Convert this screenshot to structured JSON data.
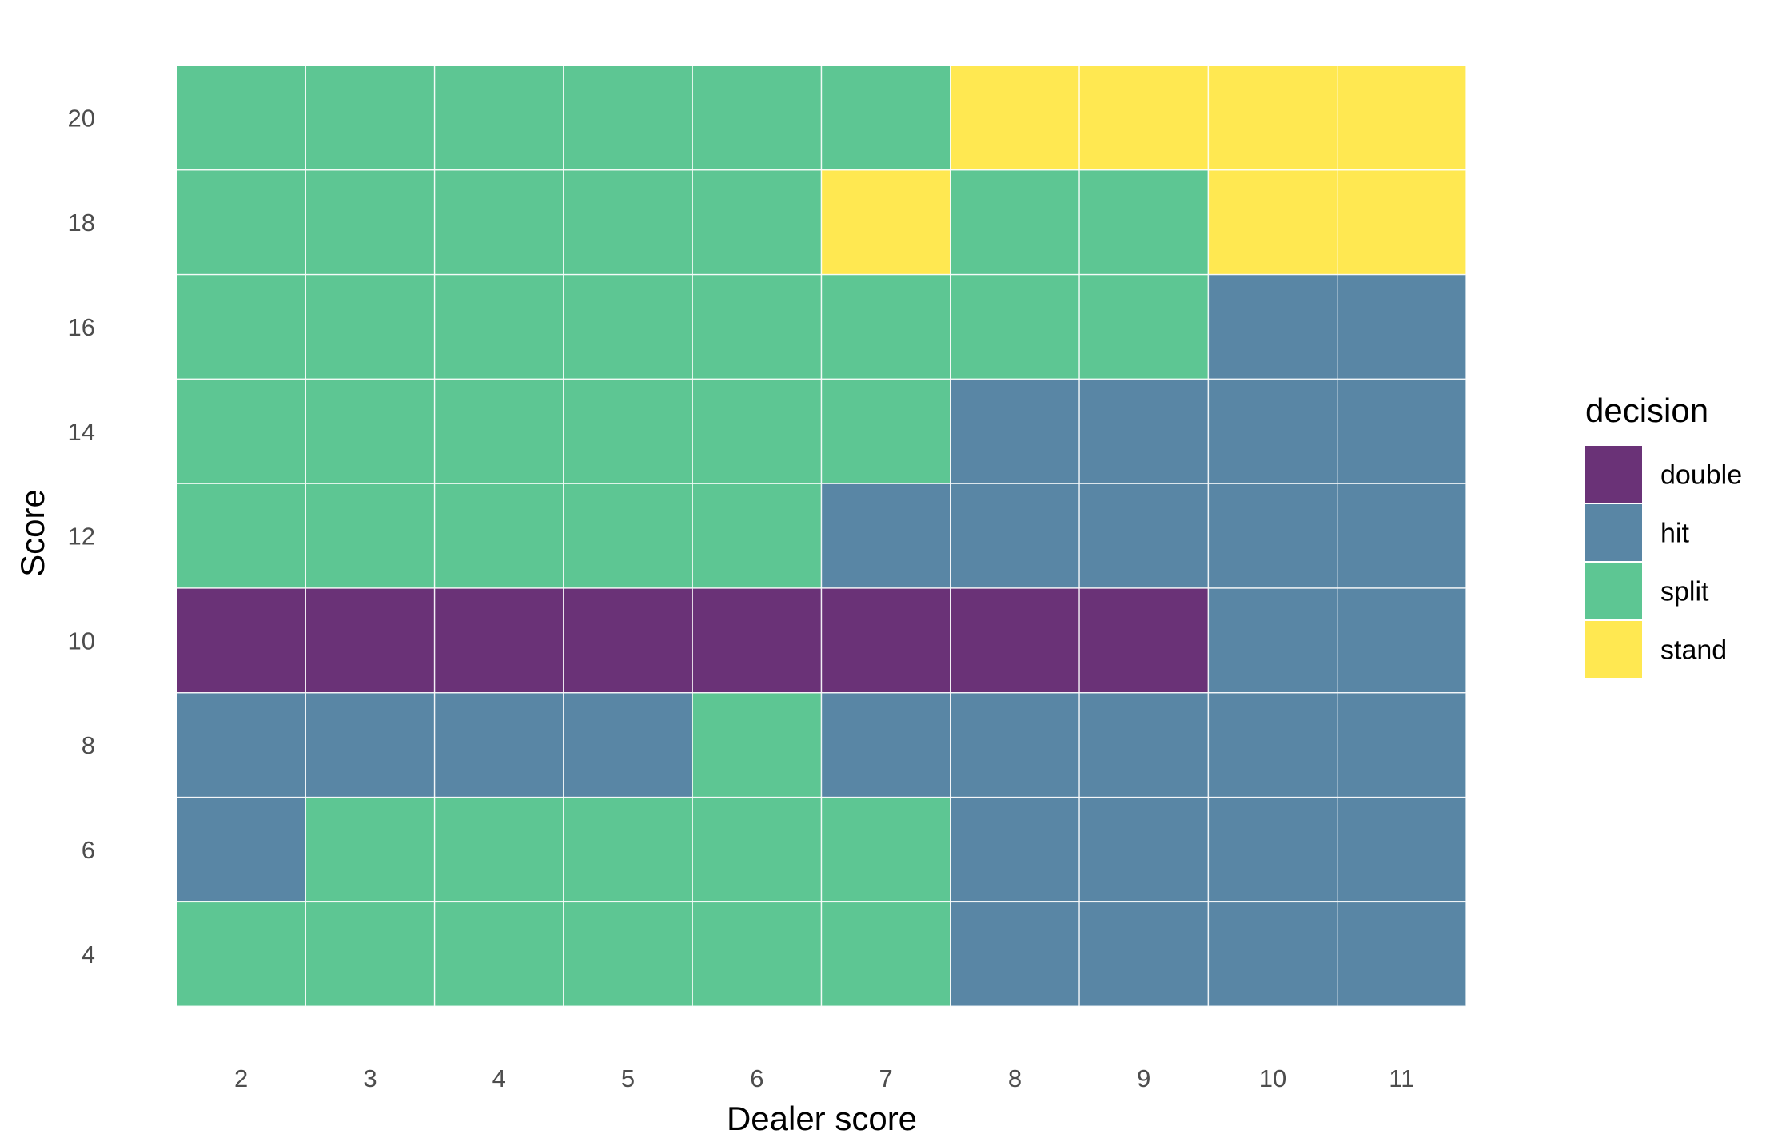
{
  "chart_data": {
    "type": "heatmap",
    "xlabel": "Dealer score",
    "ylabel": "Score",
    "x": [
      2,
      3,
      4,
      5,
      6,
      7,
      8,
      9,
      10,
      11
    ],
    "y": [
      4,
      6,
      8,
      10,
      12,
      14,
      16,
      18,
      20
    ],
    "legend": {
      "title": "decision",
      "position": "right",
      "entries": [
        {
          "label": "double",
          "color": "#6a3277"
        },
        {
          "label": "hit",
          "color": "#5986a5"
        },
        {
          "label": "split",
          "color": "#5dc693"
        },
        {
          "label": "stand",
          "color": "#ffe851"
        }
      ]
    },
    "rows": [
      {
        "score": 20,
        "decisions": [
          "split",
          "split",
          "split",
          "split",
          "split",
          "split",
          "stand",
          "stand",
          "stand",
          "stand"
        ]
      },
      {
        "score": 18,
        "decisions": [
          "split",
          "split",
          "split",
          "split",
          "split",
          "stand",
          "split",
          "split",
          "stand",
          "stand"
        ]
      },
      {
        "score": 16,
        "decisions": [
          "split",
          "split",
          "split",
          "split",
          "split",
          "split",
          "split",
          "split",
          "hit",
          "hit"
        ]
      },
      {
        "score": 14,
        "decisions": [
          "split",
          "split",
          "split",
          "split",
          "split",
          "split",
          "hit",
          "hit",
          "hit",
          "hit"
        ]
      },
      {
        "score": 12,
        "decisions": [
          "split",
          "split",
          "split",
          "split",
          "split",
          "hit",
          "hit",
          "hit",
          "hit",
          "hit"
        ]
      },
      {
        "score": 10,
        "decisions": [
          "double",
          "double",
          "double",
          "double",
          "double",
          "double",
          "double",
          "double",
          "hit",
          "hit"
        ]
      },
      {
        "score": 8,
        "decisions": [
          "hit",
          "hit",
          "hit",
          "hit",
          "split",
          "hit",
          "hit",
          "hit",
          "hit",
          "hit"
        ]
      },
      {
        "score": 6,
        "decisions": [
          "hit",
          "split",
          "split",
          "split",
          "split",
          "split",
          "hit",
          "hit",
          "hit",
          "hit"
        ]
      },
      {
        "score": 4,
        "decisions": [
          "split",
          "split",
          "split",
          "split",
          "split",
          "split",
          "hit",
          "hit",
          "hit",
          "hit"
        ]
      }
    ],
    "grid": true
  }
}
